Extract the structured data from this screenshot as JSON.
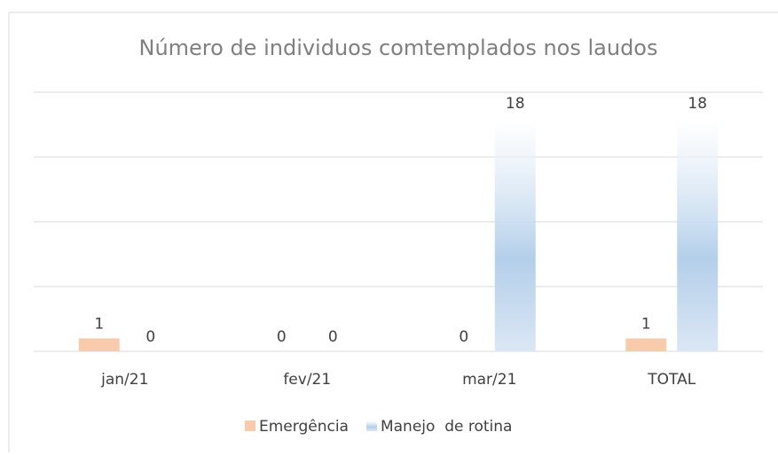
{
  "chart_data": {
    "type": "bar",
    "title": "Número de individuos comtemplados nos laudos",
    "categories": [
      "jan/21",
      "fev/21",
      "mar/21",
      "TOTAL"
    ],
    "series": [
      {
        "name": "Emergência",
        "color": "#f8cbad",
        "values": [
          1,
          0,
          0,
          1
        ]
      },
      {
        "name": "Manejo  de rotina",
        "color": "#b4cfea",
        "values": [
          0,
          0,
          18,
          18
        ]
      }
    ],
    "ylim": [
      0,
      20
    ],
    "yticks": [
      0,
      5,
      10,
      15,
      20
    ],
    "grid": true,
    "legend": "bottom"
  }
}
